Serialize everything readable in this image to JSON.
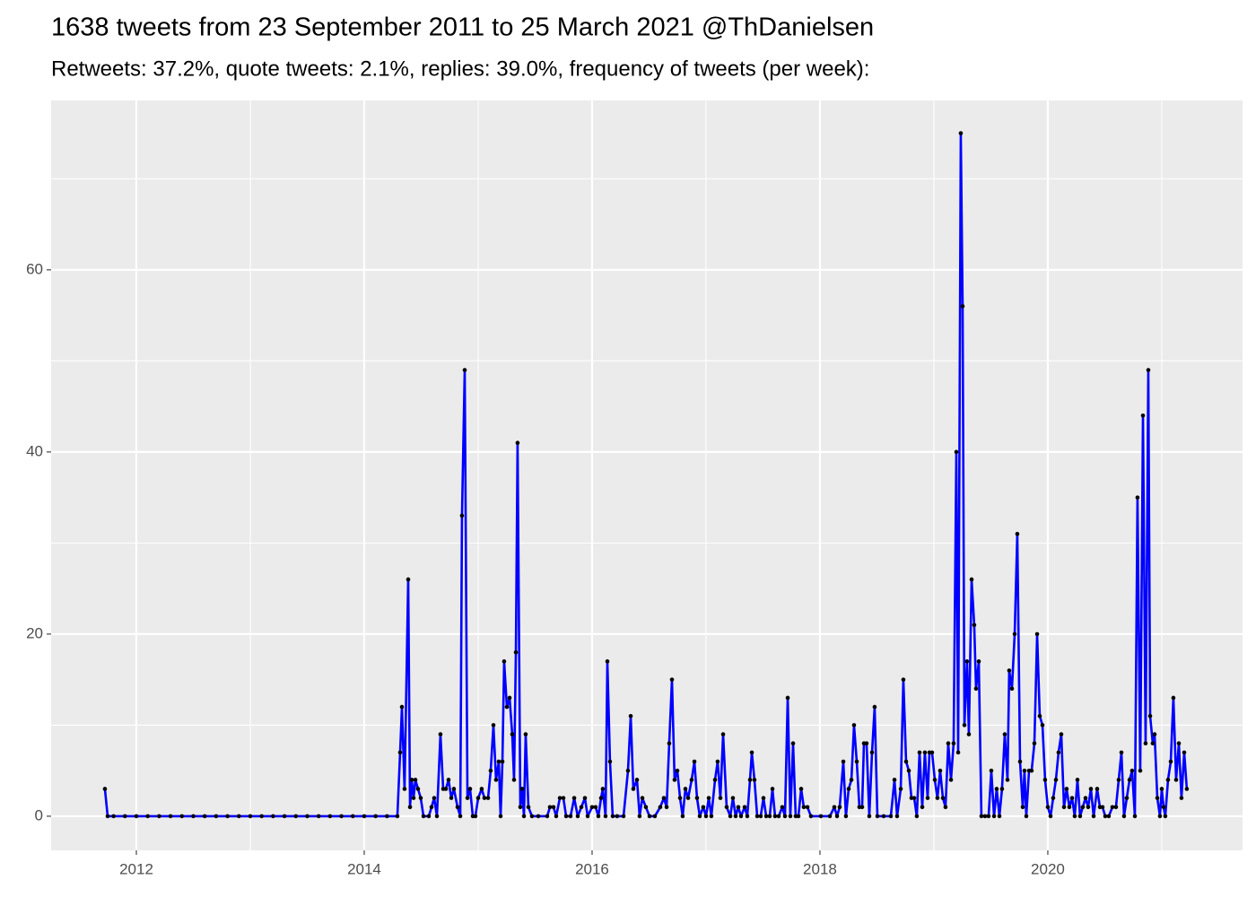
{
  "chart_data": {
    "type": "line",
    "title": "1638 tweets from 23 September 2011 to 25 March 2021 @ThDanielsen",
    "subtitle": "Retweets: 37.2%, quote tweets: 2.1%, replies: 39.0%, frequency of tweets (per week):",
    "color": "#0000ff",
    "point_color": "#000000",
    "grid": true,
    "xlim": [
      2011.252,
      2021.709
    ],
    "xticks": [
      2012,
      2014,
      2016,
      2018,
      2020
    ],
    "xminor": [
      2013,
      2015,
      2017,
      2019,
      2021
    ],
    "ylim": [
      -3.75,
      78.6
    ],
    "yticks": [
      0,
      20,
      40,
      60
    ],
    "yminor": [
      10,
      30,
      50,
      70
    ],
    "x": [
      2011.724,
      2011.748,
      2011.8,
      2011.9,
      2012,
      2012.1,
      2012.2,
      2012.3,
      2012.4,
      2012.5,
      2012.6,
      2012.7,
      2012.8,
      2012.9,
      2013,
      2013.1,
      2013.2,
      2013.3,
      2013.4,
      2013.5,
      2013.6,
      2013.7,
      2013.8,
      2013.9,
      2014,
      2014.1,
      2014.2,
      2014.291,
      2014.315,
      2014.331,
      2014.354,
      2014.386,
      2014.402,
      2014.417,
      2014.433,
      2014.449,
      2014.472,
      2014.496,
      2014.52,
      2014.567,
      2014.591,
      2014.614,
      2014.638,
      2014.669,
      2014.693,
      2014.717,
      2014.74,
      2014.764,
      2014.787,
      2014.819,
      2014.843,
      2014.858,
      2014.882,
      2014.906,
      2014.929,
      2014.953,
      2014.976,
      2015,
      2015.031,
      2015.055,
      2015.087,
      2015.11,
      2015.134,
      2015.157,
      2015.181,
      2015.197,
      2015.213,
      2015.228,
      2015.252,
      2015.276,
      2015.299,
      2015.315,
      2015.331,
      2015.346,
      2015.37,
      2015.386,
      2015.402,
      2015.417,
      2015.441,
      2015.472,
      2015.528,
      2015.606,
      2015.63,
      2015.661,
      2015.685,
      2015.717,
      2015.748,
      2015.772,
      2015.811,
      2015.843,
      2015.874,
      2015.906,
      2015.937,
      2015.961,
      2016,
      2016.031,
      2016.055,
      2016.079,
      2016.094,
      2016.118,
      2016.134,
      2016.157,
      2016.181,
      2016.22,
      2016.276,
      2016.315,
      2016.339,
      2016.362,
      2016.394,
      2016.417,
      2016.441,
      2016.472,
      2016.504,
      2016.551,
      2016.598,
      2016.63,
      2016.654,
      2016.677,
      2016.701,
      2016.724,
      2016.748,
      2016.772,
      2016.795,
      2016.819,
      2016.843,
      2016.874,
      2016.898,
      2016.921,
      2016.945,
      2016.976,
      2017,
      2017.024,
      2017.047,
      2017.079,
      2017.102,
      2017.126,
      2017.15,
      2017.181,
      2017.213,
      2017.236,
      2017.26,
      2017.283,
      2017.307,
      2017.339,
      2017.362,
      2017.386,
      2017.402,
      2017.425,
      2017.449,
      2017.48,
      2017.504,
      2017.528,
      2017.559,
      2017.583,
      2017.606,
      2017.638,
      2017.669,
      2017.693,
      2017.717,
      2017.74,
      2017.764,
      2017.787,
      2017.811,
      2017.835,
      2017.858,
      2017.89,
      2017.921,
      2018.008,
      2018.087,
      2018.126,
      2018.15,
      2018.173,
      2018.205,
      2018.228,
      2018.252,
      2018.276,
      2018.299,
      2018.323,
      2018.346,
      2018.37,
      2018.386,
      2018.409,
      2018.433,
      2018.457,
      2018.48,
      2018.504,
      2018.559,
      2018.622,
      2018.654,
      2018.677,
      2018.709,
      2018.732,
      2018.756,
      2018.78,
      2018.803,
      2018.827,
      2018.85,
      2018.874,
      2018.898,
      2018.921,
      2018.945,
      2018.961,
      2018.984,
      2019.008,
      2019.031,
      2019.055,
      2019.079,
      2019.102,
      2019.126,
      2019.15,
      2019.173,
      2019.197,
      2019.213,
      2019.236,
      2019.252,
      2019.268,
      2019.291,
      2019.307,
      2019.331,
      2019.354,
      2019.37,
      2019.394,
      2019.417,
      2019.449,
      2019.48,
      2019.504,
      2019.528,
      2019.551,
      2019.575,
      2019.598,
      2019.622,
      2019.646,
      2019.661,
      2019.685,
      2019.709,
      2019.732,
      2019.756,
      2019.78,
      2019.795,
      2019.811,
      2019.835,
      2019.858,
      2019.882,
      2019.906,
      2019.929,
      2019.953,
      2019.976,
      2020,
      2020.024,
      2020.047,
      2020.071,
      2020.094,
      2020.118,
      2020.142,
      2020.165,
      2020.189,
      2020.213,
      2020.236,
      2020.26,
      2020.283,
      2020.307,
      2020.331,
      2020.354,
      2020.378,
      2020.402,
      2020.433,
      2020.457,
      2020.48,
      2020.504,
      2020.535,
      2020.567,
      2020.598,
      2020.622,
      2020.646,
      2020.669,
      2020.693,
      2020.717,
      2020.74,
      2020.764,
      2020.787,
      2020.811,
      2020.835,
      2020.858,
      2020.882,
      2020.898,
      2020.921,
      2020.937,
      2020.961,
      2020.984,
      2021,
      2021.016,
      2021.031,
      2021.055,
      2021.079,
      2021.102,
      2021.126,
      2021.15,
      2021.173,
      2021.197,
      2021.22
    ],
    "values": [
      3,
      0,
      0,
      0,
      0,
      0,
      0,
      0,
      0,
      0,
      0,
      0,
      0,
      0,
      0,
      0,
      0,
      0,
      0,
      0,
      0,
      0,
      0,
      0,
      0,
      0,
      0,
      0,
      7,
      12,
      3,
      26,
      1,
      4,
      2,
      4,
      3,
      2,
      0,
      0,
      1,
      2,
      0,
      9,
      3,
      3,
      4,
      2,
      3,
      1,
      0,
      33,
      49,
      2,
      3,
      0,
      0,
      2,
      3,
      2,
      2,
      5,
      10,
      4,
      6,
      0,
      6,
      17,
      12,
      13,
      9,
      4,
      18,
      41,
      1,
      3,
      0,
      9,
      1,
      0,
      0,
      0,
      1,
      1,
      0,
      2,
      2,
      0,
      0,
      2,
      0,
      1,
      2,
      0,
      1,
      1,
      0,
      2,
      3,
      0,
      17,
      6,
      0,
      0,
      0,
      5,
      11,
      3,
      4,
      0,
      2,
      1,
      0,
      0,
      1,
      2,
      1,
      8,
      15,
      4,
      5,
      2,
      0,
      3,
      2,
      4,
      6,
      2,
      0,
      1,
      0,
      2,
      0,
      4,
      6,
      2,
      9,
      1,
      0,
      2,
      0,
      1,
      0,
      1,
      0,
      4,
      7,
      4,
      0,
      0,
      2,
      0,
      0,
      3,
      0,
      0,
      1,
      0,
      13,
      0,
      8,
      0,
      0,
      3,
      1,
      1,
      0,
      0,
      0,
      1,
      0,
      1,
      6,
      0,
      3,
      4,
      10,
      6,
      1,
      1,
      8,
      8,
      0,
      7,
      12,
      0,
      0,
      0,
      4,
      0,
      3,
      15,
      6,
      5,
      2,
      2,
      0,
      7,
      1,
      7,
      2,
      7,
      7,
      4,
      2,
      5,
      2,
      1,
      8,
      4,
      8,
      40,
      7,
      75,
      56,
      10,
      17,
      9,
      26,
      21,
      14,
      17,
      0,
      0,
      0,
      5,
      0,
      3,
      0,
      3,
      9,
      4,
      16,
      14,
      20,
      31,
      6,
      1,
      5,
      0,
      5,
      5,
      8,
      20,
      11,
      10,
      4,
      1,
      0,
      2,
      4,
      7,
      9,
      1,
      3,
      1,
      2,
      0,
      4,
      0,
      1,
      2,
      1,
      3,
      0,
      3,
      1,
      1,
      0,
      0,
      1,
      1,
      4,
      7,
      0,
      2,
      4,
      5,
      0,
      35,
      5,
      44,
      8,
      49,
      11,
      8,
      9,
      2,
      0,
      3,
      1,
      0,
      4,
      6,
      13,
      4,
      8,
      2,
      7,
      3
    ]
  }
}
